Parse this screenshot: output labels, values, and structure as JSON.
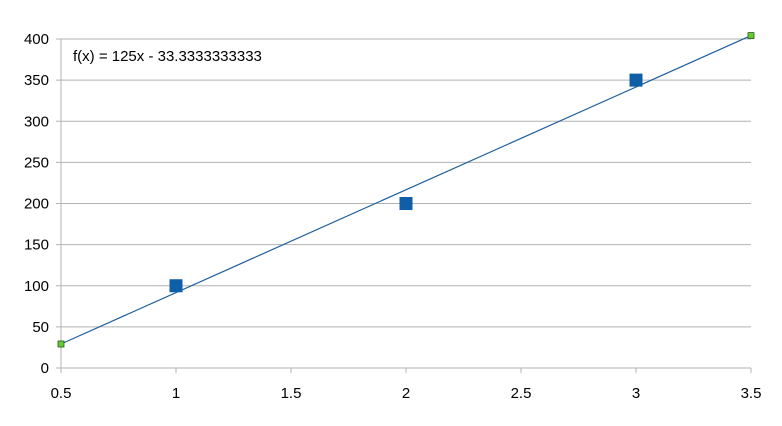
{
  "chart_data": {
    "type": "scatter",
    "annotation": "f(x) = 125x - 33.3333333333",
    "xlim": [
      0.5,
      3.5
    ],
    "ylim": [
      0,
      400
    ],
    "x_ticks": [
      "0.5",
      "1",
      "1.5",
      "2",
      "2.5",
      "3",
      "3.5"
    ],
    "y_ticks": [
      "0",
      "50",
      "100",
      "150",
      "200",
      "250",
      "300",
      "350",
      "400"
    ],
    "grid": "horizontal",
    "series": [
      {
        "x": [
          1,
          2,
          3
        ],
        "y": [
          100,
          200,
          350
        ],
        "color": "#0f5fa8",
        "marker": "square"
      }
    ],
    "trendline": {
      "slope": 125,
      "intercept": -33.3333333333,
      "x_range": [
        0.5,
        3.5
      ],
      "color": "#1f5f9e",
      "endpoint_color": "#66cc33"
    }
  }
}
